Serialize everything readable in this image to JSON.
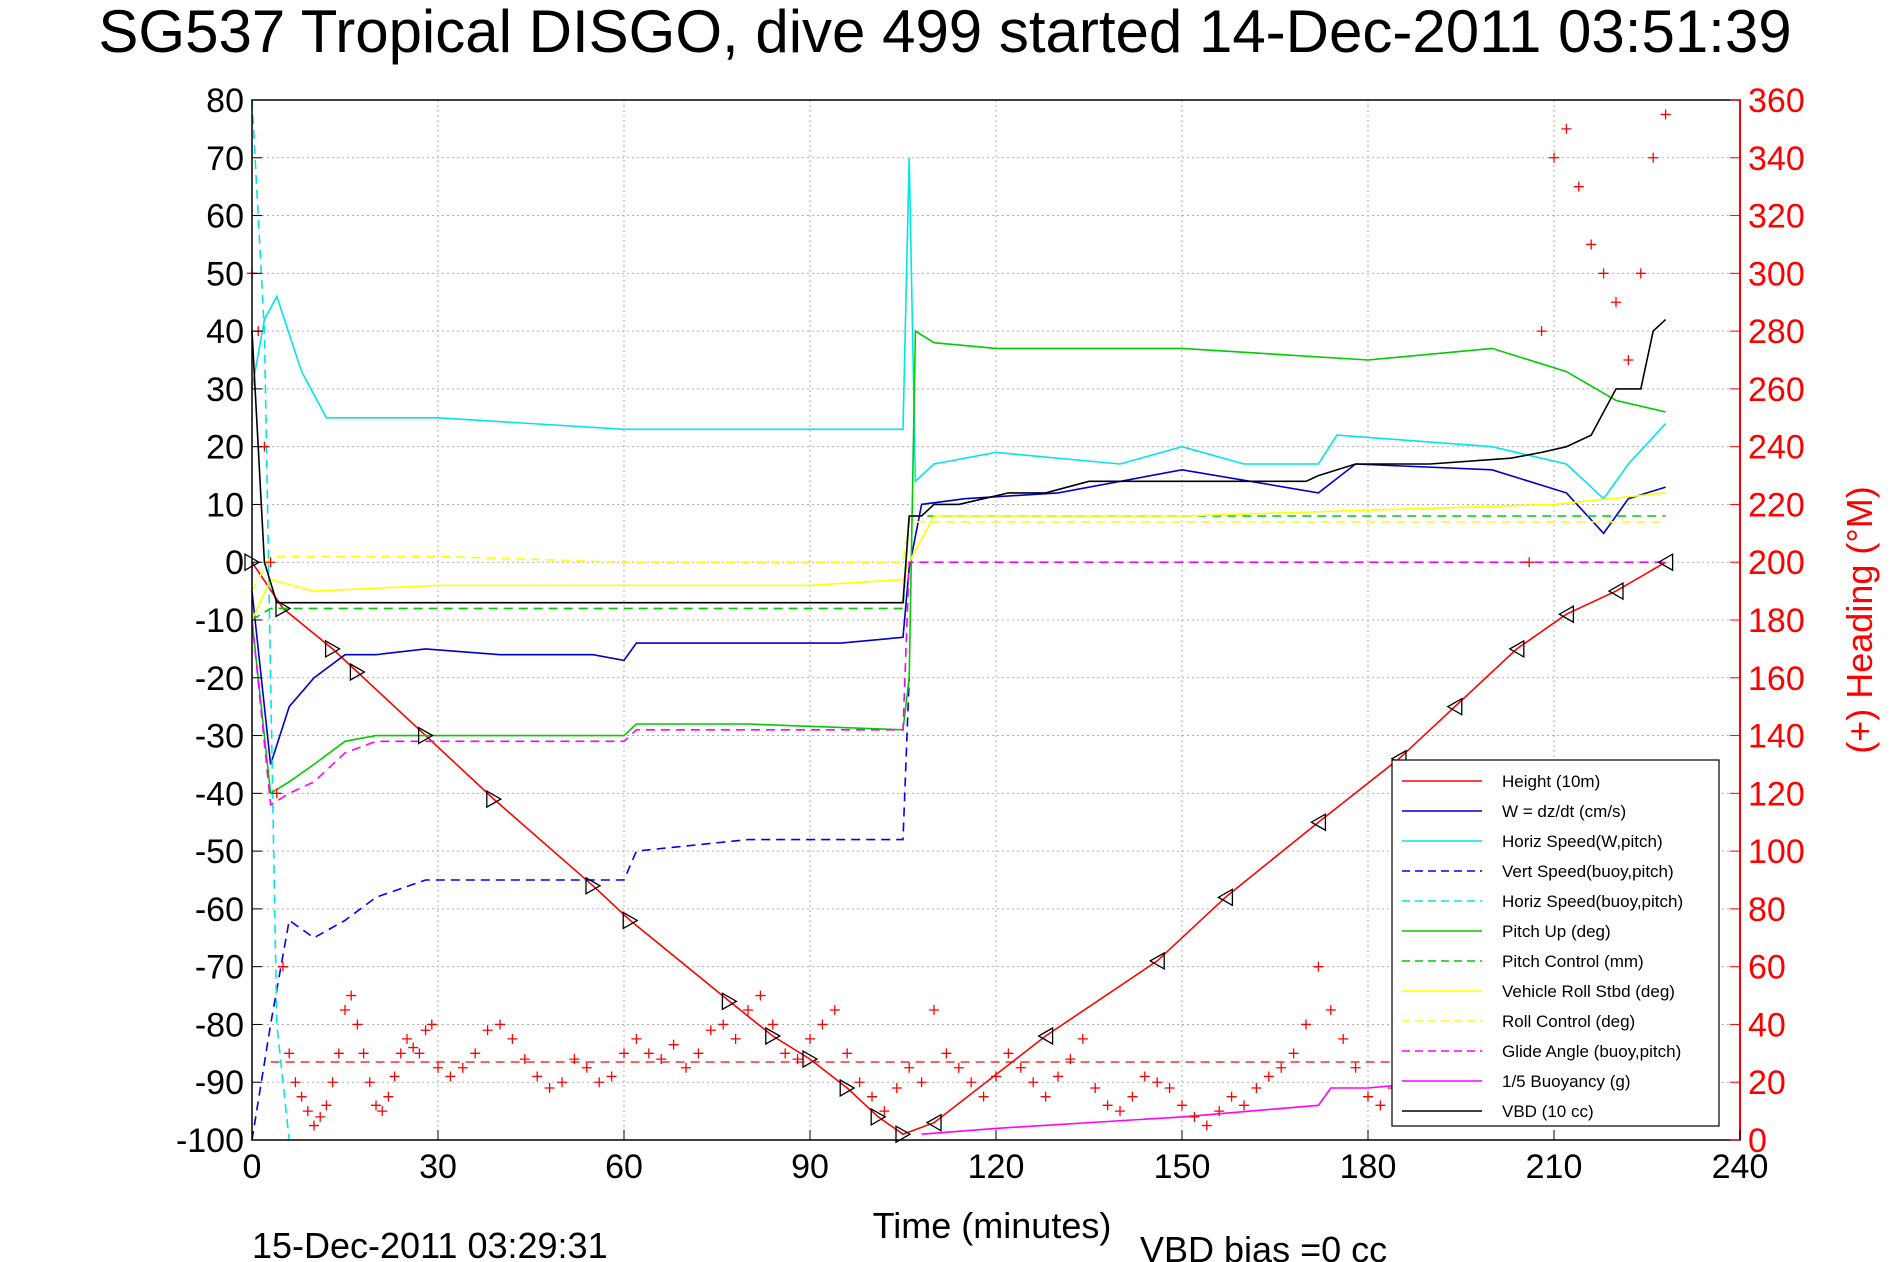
{
  "chart_data": {
    "type": "line",
    "title": "SG537 Tropical DISGO, dive 499 started 14-Dec-2011 03:51:39",
    "xlabel": "Time (minutes)",
    "ylabel": "",
    "y2label": "(+) Heading (°M)",
    "footer_left": "15-Dec-2011 03:29:31",
    "footer_right": "VBD bias =0 cc",
    "xlim": [
      0,
      240
    ],
    "ylim": [
      -100,
      80
    ],
    "y2lim": [
      0,
      360
    ],
    "grid": true,
    "legend_position": "bottom-right",
    "x_ticks": [
      "0",
      "30",
      "60",
      "90",
      "120",
      "150",
      "180",
      "210",
      "240"
    ],
    "y_ticks": [
      "80",
      "70",
      "60",
      "50",
      "40",
      "30",
      "20",
      "10",
      "0",
      "-10",
      "-20",
      "-30",
      "-40",
      "-50",
      "-60",
      "-70",
      "-80",
      "-90",
      "-100"
    ],
    "y2_ticks": [
      "360",
      "340",
      "320",
      "300",
      "280",
      "260",
      "240",
      "220",
      "200",
      "180",
      "160",
      "140",
      "120",
      "100",
      "80",
      "60",
      "40",
      "20",
      "0"
    ],
    "series": [
      {
        "name": "Height (10m)",
        "color": "#ff0000",
        "dash": "solid",
        "x": [
          0,
          5,
          13,
          17,
          28,
          39,
          55,
          61,
          77,
          84,
          90,
          96,
          101,
          105,
          110,
          128,
          146,
          157,
          172,
          185,
          194,
          204,
          212,
          220,
          228
        ],
        "y": [
          0,
          -8,
          -15,
          -19,
          -30,
          -41,
          -56,
          -62,
          -76,
          -82,
          -86,
          -91,
          -96,
          -99,
          -97,
          -82,
          -69,
          -58,
          -45,
          -34,
          -25,
          -15,
          -9,
          -5,
          0
        ]
      },
      {
        "name": "W = dz/dt (cm/s)",
        "color": "#0000cc",
        "dash": "solid",
        "x": [
          0,
          3,
          6,
          10,
          15,
          20,
          28,
          40,
          55,
          60,
          62,
          80,
          95,
          105,
          106,
          108,
          115,
          130,
          150,
          172,
          178,
          200,
          212,
          218,
          222,
          228
        ],
        "y": [
          -5,
          -35,
          -25,
          -20,
          -16,
          -16,
          -15,
          -16,
          -16,
          -17,
          -14,
          -14,
          -14,
          -13,
          -1,
          10,
          11,
          12,
          16,
          12,
          17,
          16,
          12,
          5,
          11,
          13
        ]
      },
      {
        "name": "Horiz Speed(W,pitch)",
        "color": "#00e6e6",
        "dash": "solid",
        "x": [
          0,
          2,
          4,
          8,
          12,
          30,
          60,
          80,
          100,
          105,
          106,
          107,
          110,
          120,
          140,
          150,
          160,
          172,
          175,
          200,
          212,
          218,
          222,
          228
        ],
        "y": [
          30,
          42,
          46,
          33,
          25,
          25,
          23,
          23,
          23,
          23,
          70,
          14,
          17,
          19,
          17,
          20,
          17,
          17,
          22,
          20,
          17,
          11,
          17,
          24
        ]
      },
      {
        "name": "Vert Speed(buoy,pitch)",
        "color": "#0000ff",
        "dash": "dashed",
        "x": [
          0,
          3,
          6,
          10,
          15,
          20,
          28,
          40,
          55,
          60,
          62,
          80,
          95,
          105,
          106
        ],
        "y": [
          -100,
          -80,
          -62,
          -65,
          -62,
          -58,
          -55,
          -55,
          -55,
          -55,
          -50,
          -48,
          -48,
          -48,
          -20
        ]
      },
      {
        "name": "Horiz Speed(buoy,pitch)",
        "color": "#00e6e6",
        "dash": "dashed",
        "x": [
          0,
          2,
          4,
          6
        ],
        "y": [
          80,
          40,
          -80,
          -100
        ]
      },
      {
        "name": "Pitch Up (deg)",
        "color": "#00cc00",
        "dash": "solid",
        "x": [
          0,
          3,
          6,
          10,
          15,
          20,
          30,
          60,
          62,
          80,
          105,
          106,
          107,
          110,
          120,
          150,
          180,
          200,
          212,
          220,
          228
        ],
        "y": [
          -10,
          -40,
          -38,
          -35,
          -31,
          -30,
          -30,
          -30,
          -28,
          -28,
          -29,
          -20,
          40,
          38,
          37,
          37,
          35,
          37,
          33,
          28,
          26
        ]
      },
      {
        "name": "Pitch Control (mm)",
        "color": "#00cc00",
        "dash": "dashed",
        "x": [
          0,
          3,
          105,
          106,
          228
        ],
        "y": [
          -10,
          -8,
          -8,
          8,
          8
        ]
      },
      {
        "name": "Vehicle Roll Stbd (deg)",
        "color": "#ffff00",
        "dash": "solid",
        "x": [
          0,
          3,
          10,
          30,
          60,
          90,
          105,
          106,
          110,
          150,
          180,
          210,
          228
        ],
        "y": [
          -10,
          -3,
          -5,
          -4,
          -4,
          -4,
          -3,
          0,
          8,
          8,
          9,
          10,
          12
        ]
      },
      {
        "name": "Roll Control (deg)",
        "color": "#ffff00",
        "dash": "dashed",
        "x": [
          0,
          3,
          30,
          60,
          105,
          106,
          228
        ],
        "y": [
          -5,
          1,
          1,
          0,
          0,
          7,
          7
        ]
      },
      {
        "name": "Glide Angle (buoy,pitch)",
        "color": "#ff00ff",
        "dash": "dashed",
        "x": [
          0,
          3,
          6,
          10,
          15,
          20,
          30,
          60,
          62,
          80,
          105,
          106,
          228
        ],
        "y": [
          -10,
          -42,
          -40,
          -38,
          -33,
          -31,
          -31,
          -31,
          -29,
          -29,
          -29,
          0,
          0
        ]
      },
      {
        "name": "1/5 Buoyancy (g)",
        "color": "#ff00ff",
        "dash": "solid",
        "x": [
          108,
          120,
          150,
          172,
          174,
          180,
          190
        ],
        "y": [
          -99,
          -98,
          -96,
          -94,
          -91,
          -91,
          -90
        ]
      },
      {
        "name": "VBD (10 cc)",
        "color": "#000000",
        "dash": "solid",
        "x": [
          0,
          2,
          4,
          105,
          106,
          108,
          110,
          114,
          118,
          122,
          128,
          135,
          170,
          172,
          178,
          190,
          203,
          208,
          212,
          216,
          220,
          224,
          226,
          228
        ],
        "y": [
          40,
          0,
          -7,
          -7,
          8,
          8,
          10,
          10,
          11,
          12,
          12,
          14,
          14,
          15,
          17,
          17,
          18,
          19,
          20,
          22,
          30,
          30,
          40,
          42
        ]
      }
    ],
    "heading_scatter": {
      "name": "Heading",
      "axis": "right",
      "color": "#ff0000",
      "marker": "+",
      "x": [
        0,
        1,
        2,
        3,
        4,
        5,
        6,
        7,
        8,
        9,
        10,
        11,
        12,
        13,
        14,
        15,
        16,
        17,
        18,
        19,
        20,
        21,
        22,
        23,
        24,
        25,
        26,
        27,
        28,
        29,
        30,
        32,
        34,
        36,
        38,
        40,
        42,
        44,
        46,
        48,
        50,
        52,
        54,
        56,
        58,
        60,
        62,
        64,
        66,
        68,
        70,
        72,
        74,
        76,
        78,
        80,
        82,
        84,
        86,
        88,
        90,
        92,
        94,
        96,
        98,
        100,
        102,
        104,
        106,
        108,
        110,
        112,
        114,
        116,
        118,
        120,
        122,
        124,
        126,
        128,
        130,
        132,
        134,
        136,
        138,
        140,
        142,
        144,
        146,
        148,
        150,
        152,
        154,
        156,
        158,
        160,
        162,
        164,
        166,
        168,
        170,
        172,
        174,
        176,
        178,
        180,
        182,
        184,
        186,
        188,
        190,
        192,
        194,
        196,
        198,
        200,
        202,
        204,
        206,
        208,
        210,
        212,
        214,
        216,
        218,
        220,
        222,
        224,
        226,
        228
      ],
      "y": [
        300,
        280,
        240,
        200,
        120,
        60,
        30,
        20,
        15,
        10,
        5,
        8,
        12,
        20,
        30,
        45,
        50,
        40,
        30,
        20,
        12,
        10,
        15,
        22,
        30,
        35,
        32,
        30,
        38,
        40,
        25,
        22,
        25,
        30,
        38,
        40,
        35,
        28,
        22,
        18,
        20,
        28,
        25,
        20,
        22,
        30,
        35,
        30,
        28,
        33,
        25,
        30,
        38,
        40,
        35,
        45,
        50,
        40,
        30,
        28,
        35,
        40,
        45,
        30,
        20,
        15,
        10,
        18,
        25,
        20,
        45,
        30,
        25,
        20,
        15,
        22,
        30,
        25,
        20,
        15,
        22,
        28,
        35,
        18,
        12,
        10,
        15,
        22,
        20,
        18,
        12,
        8,
        5,
        10,
        15,
        12,
        18,
        22,
        25,
        30,
        40,
        60,
        45,
        35,
        25,
        15,
        12,
        18,
        25,
        30,
        28,
        35,
        40,
        30,
        25,
        20,
        30,
        40,
        200,
        280,
        340,
        350,
        330,
        310,
        300,
        290,
        270,
        300,
        340,
        355
      ]
    }
  },
  "legend": {
    "items": [
      {
        "label": "Height (10m)",
        "color": "#ff0000",
        "dash": "solid"
      },
      {
        "label": "W = dz/dt (cm/s)",
        "color": "#0000cc",
        "dash": "solid"
      },
      {
        "label": "Horiz Speed(W,pitch)",
        "color": "#00e6e6",
        "dash": "solid"
      },
      {
        "label": "Vert Speed(buoy,pitch)",
        "color": "#0000ff",
        "dash": "dashed"
      },
      {
        "label": "Horiz Speed(buoy,pitch)",
        "color": "#00e6e6",
        "dash": "dashed"
      },
      {
        "label": "Pitch Up (deg)",
        "color": "#00cc00",
        "dash": "solid"
      },
      {
        "label": "Pitch Control (mm)",
        "color": "#00cc00",
        "dash": "dashed"
      },
      {
        "label": "Vehicle Roll Stbd (deg)",
        "color": "#ffff00",
        "dash": "solid"
      },
      {
        "label": "Roll Control (deg)",
        "color": "#ffff00",
        "dash": "dashed"
      },
      {
        "label": "Glide Angle (buoy,pitch)",
        "color": "#ff00ff",
        "dash": "dashed"
      },
      {
        "label": "1/5 Buoyancy (g)",
        "color": "#ff00ff",
        "dash": "solid"
      },
      {
        "label": "VBD (10 cc)",
        "color": "#000000",
        "dash": "solid"
      }
    ]
  }
}
